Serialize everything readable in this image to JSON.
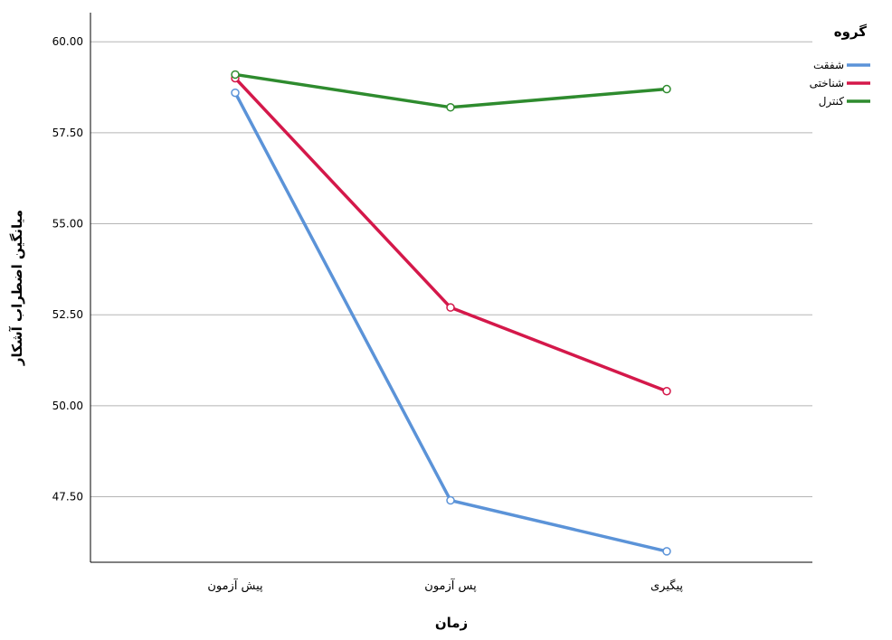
{
  "chart_data": {
    "type": "line",
    "title": "",
    "xlabel": "زمان",
    "ylabel": "میانگین اضطراب آشکار",
    "categories": [
      "پیش آزمون",
      "پس آزمون",
      "پیگیری"
    ],
    "ylim": [
      45.7,
      60.8
    ],
    "yticks": [
      47.5,
      50.0,
      52.5,
      55.0,
      57.5,
      60.0
    ],
    "ytick_labels": [
      "47.50",
      "50.00",
      "52.50",
      "55.00",
      "57.50",
      "60.00"
    ],
    "grid": true,
    "legend_title": "گروه",
    "legend_position": "top-right",
    "series": [
      {
        "name": "شفقت",
        "color": "#5b93d8",
        "values": [
          58.6,
          47.4,
          46.0
        ]
      },
      {
        "name": "شناختی",
        "color": "#d4184a",
        "values": [
          59.0,
          52.7,
          50.4
        ]
      },
      {
        "name": "کنترل",
        "color": "#2e8b2e",
        "values": [
          59.1,
          58.2,
          58.7
        ]
      }
    ]
  }
}
